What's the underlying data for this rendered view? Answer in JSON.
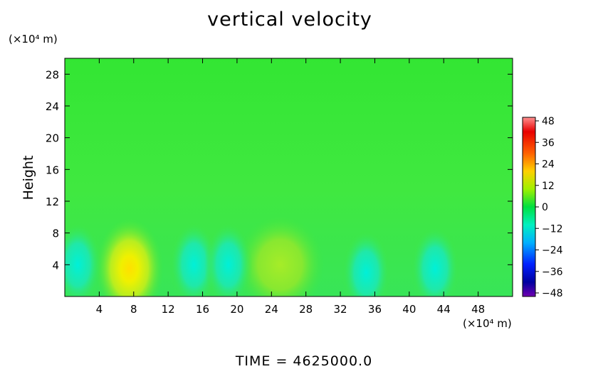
{
  "chart_data": {
    "type": "heatmap",
    "title": "vertical velocity",
    "ylabel": "Height",
    "xlabel": "",
    "x_unit_label": "(×10⁴ m)",
    "y_unit_label": "(×10⁴ m)",
    "xlim": [
      0,
      52
    ],
    "ylim": [
      0,
      30
    ],
    "xticks": [
      4,
      8,
      12,
      16,
      20,
      24,
      28,
      32,
      36,
      40,
      44,
      48
    ],
    "yticks": [
      4,
      8,
      12,
      16,
      20,
      24,
      28
    ],
    "colorbar": {
      "levels": [
        48,
        36,
        24,
        12,
        0,
        -12,
        -24,
        -36,
        -48
      ],
      "range": [
        -48,
        48
      ],
      "colors": [
        "#6a0dad",
        "#0000b0",
        "#0030ff",
        "#00b8ff",
        "#00f0d0",
        "#00e040",
        "#70f000",
        "#e8f000",
        "#ffb000",
        "#ff4000",
        "#e00000",
        "#ff8080"
      ]
    },
    "background_value": 2,
    "features": [
      {
        "x": 7.5,
        "y": 3.5,
        "value": 24
      },
      {
        "x": 25,
        "y": 4,
        "value": 12
      },
      {
        "x": 1.5,
        "y": 4,
        "value": -12
      },
      {
        "x": 15,
        "y": 4,
        "value": -10
      },
      {
        "x": 19,
        "y": 4,
        "value": -12
      },
      {
        "x": 35,
        "y": 3,
        "value": -8
      },
      {
        "x": 43,
        "y": 3.5,
        "value": -8
      }
    ]
  },
  "footer": {
    "time_label": "TIME  =  4625000.0"
  }
}
